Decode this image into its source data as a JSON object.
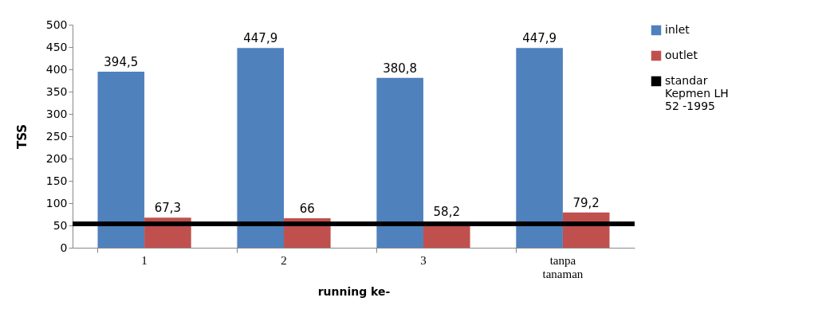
{
  "chart_data": {
    "type": "bar",
    "xlabel": "running ke-",
    "ylabel": "TSS",
    "categories": [
      "1",
      "2",
      "3",
      "tanpa tanaman"
    ],
    "series": [
      {
        "name": "inlet",
        "color": "#4f81bd",
        "values": [
          394.5,
          447.9,
          380.8,
          447.9
        ],
        "value_labels": [
          "394,5",
          "447,9",
          "380,8",
          "447,9"
        ]
      },
      {
        "name": "outlet",
        "color": "#c0504d",
        "values": [
          67.3,
          66,
          58.2,
          79.2
        ],
        "value_labels": [
          "67,3",
          "66",
          "58,2",
          "79,2"
        ]
      }
    ],
    "ylim": [
      0,
      500
    ],
    "yticks": [
      0,
      50,
      100,
      150,
      200,
      250,
      300,
      350,
      400,
      450,
      500
    ],
    "grid": false,
    "legend": "right",
    "ref_lines": [
      {
        "axis": "y",
        "value": 53,
        "label": "standar Kepmen LH 52 -1995",
        "color": "#000000"
      }
    ]
  }
}
